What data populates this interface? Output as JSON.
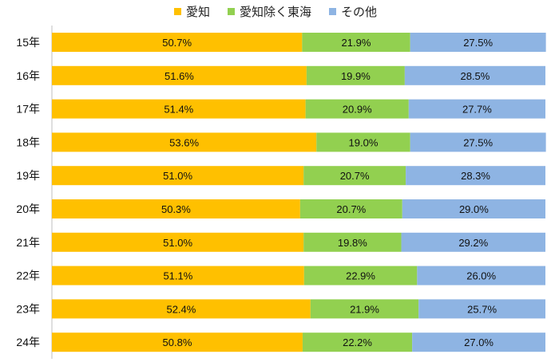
{
  "chart_data": {
    "type": "bar",
    "orientation": "horizontal",
    "stacked": true,
    "categories": [
      "15年",
      "16年",
      "17年",
      "18年",
      "19年",
      "20年",
      "21年",
      "22年",
      "23年",
      "24年"
    ],
    "series": [
      {
        "name": "愛知",
        "color": "#FFC000",
        "values": [
          50.7,
          51.6,
          51.4,
          53.6,
          51.0,
          50.3,
          51.0,
          51.1,
          52.4,
          50.8
        ],
        "labels": [
          "50.7%",
          "51.6%",
          "51.4%",
          "53.6%",
          "51.0%",
          "50.3%",
          "51.0%",
          "51.1%",
          "52.4%",
          "50.8%"
        ]
      },
      {
        "name": "愛知除く東海",
        "color": "#92D050",
        "values": [
          21.9,
          19.9,
          20.9,
          19.0,
          20.7,
          20.7,
          19.8,
          22.9,
          21.9,
          22.2
        ],
        "labels": [
          "21.9%",
          "19.9%",
          "20.9%",
          "19.0%",
          "20.7%",
          "20.7%",
          "19.8%",
          "22.9%",
          "21.9%",
          "22.2%"
        ]
      },
      {
        "name": "その他",
        "color": "#8EB4E3",
        "values": [
          27.5,
          28.5,
          27.7,
          27.5,
          28.3,
          29.0,
          29.2,
          26.0,
          25.7,
          27.0
        ],
        "labels": [
          "27.5%",
          "28.5%",
          "27.7%",
          "27.5%",
          "28.3%",
          "29.0%",
          "29.2%",
          "26.0%",
          "25.7%",
          "27.0%"
        ]
      }
    ],
    "xlim": [
      0,
      100
    ],
    "grid": false,
    "legend_position": "top"
  }
}
